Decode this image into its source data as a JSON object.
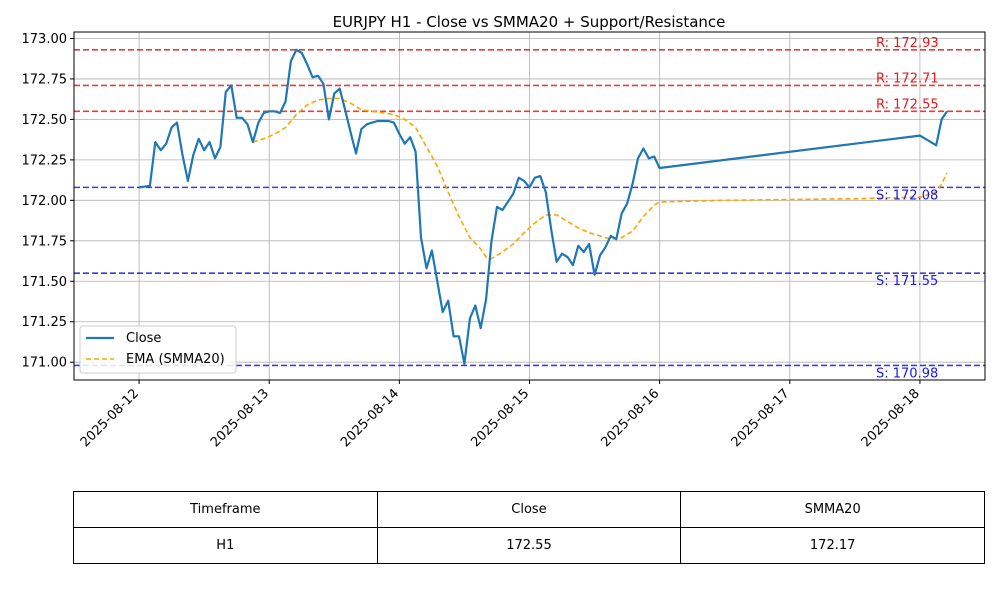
{
  "chart_data": {
    "type": "line",
    "title": "EURJPY H1 - Close vs SMMA20 + Support/Resistance",
    "xlabel": "",
    "ylabel": "",
    "xlim": [
      "2025-08-11T12:00",
      "2025-08-18T12:00"
    ],
    "ylim": [
      170.89,
      173.04
    ],
    "x_ticks": [
      "2025-08-12",
      "2025-08-13",
      "2025-08-14",
      "2025-08-15",
      "2025-08-16",
      "2025-08-17",
      "2025-08-18"
    ],
    "y_ticks": [
      "171.00",
      "171.25",
      "171.50",
      "171.75",
      "172.00",
      "172.25",
      "172.50",
      "172.75",
      "173.00"
    ],
    "grid": true,
    "legend_position": "lower-left",
    "series": [
      {
        "name": "Close",
        "color": "#1f77b4",
        "style": "solid",
        "points": [
          [
            "2025-08-12T00:00",
            172.08
          ],
          [
            "2025-08-12T02:00",
            172.09
          ],
          [
            "2025-08-12T03:00",
            172.36
          ],
          [
            "2025-08-12T04:00",
            172.31
          ],
          [
            "2025-08-12T05:00",
            172.35
          ],
          [
            "2025-08-12T06:00",
            172.45
          ],
          [
            "2025-08-12T07:00",
            172.48
          ],
          [
            "2025-08-12T08:00",
            172.28
          ],
          [
            "2025-08-12T09:00",
            172.12
          ],
          [
            "2025-08-12T10:00",
            172.28
          ],
          [
            "2025-08-12T11:00",
            172.38
          ],
          [
            "2025-08-12T12:00",
            172.31
          ],
          [
            "2025-08-12T13:00",
            172.36
          ],
          [
            "2025-08-12T14:00",
            172.26
          ],
          [
            "2025-08-12T15:00",
            172.33
          ],
          [
            "2025-08-12T16:00",
            172.67
          ],
          [
            "2025-08-12T17:00",
            172.71
          ],
          [
            "2025-08-12T18:00",
            172.51
          ],
          [
            "2025-08-12T19:00",
            172.51
          ],
          [
            "2025-08-12T20:00",
            172.47
          ],
          [
            "2025-08-12T21:00",
            172.36
          ],
          [
            "2025-08-12T22:00",
            172.48
          ],
          [
            "2025-08-12T23:00",
            172.54
          ],
          [
            "2025-08-13T00:00",
            172.55
          ],
          [
            "2025-08-13T01:00",
            172.55
          ],
          [
            "2025-08-13T02:00",
            172.54
          ],
          [
            "2025-08-13T03:00",
            172.61
          ],
          [
            "2025-08-13T04:00",
            172.86
          ],
          [
            "2025-08-13T05:00",
            172.93
          ],
          [
            "2025-08-13T06:00",
            172.91
          ],
          [
            "2025-08-13T07:00",
            172.84
          ],
          [
            "2025-08-13T08:00",
            172.76
          ],
          [
            "2025-08-13T09:00",
            172.77
          ],
          [
            "2025-08-13T10:00",
            172.72
          ],
          [
            "2025-08-13T11:00",
            172.5
          ],
          [
            "2025-08-13T12:00",
            172.66
          ],
          [
            "2025-08-13T13:00",
            172.69
          ],
          [
            "2025-08-13T14:00",
            172.56
          ],
          [
            "2025-08-13T15:00",
            172.42
          ],
          [
            "2025-08-13T16:00",
            172.29
          ],
          [
            "2025-08-13T17:00",
            172.44
          ],
          [
            "2025-08-13T18:00",
            172.47
          ],
          [
            "2025-08-13T19:00",
            172.48
          ],
          [
            "2025-08-13T20:00",
            172.49
          ],
          [
            "2025-08-13T21:00",
            172.49
          ],
          [
            "2025-08-13T22:00",
            172.49
          ],
          [
            "2025-08-13T23:00",
            172.48
          ],
          [
            "2025-08-14T00:00",
            172.41
          ],
          [
            "2025-08-14T01:00",
            172.35
          ],
          [
            "2025-08-14T02:00",
            172.39
          ],
          [
            "2025-08-14T03:00",
            172.3
          ],
          [
            "2025-08-14T04:00",
            171.77
          ],
          [
            "2025-08-14T05:00",
            171.58
          ],
          [
            "2025-08-14T06:00",
            171.69
          ],
          [
            "2025-08-14T07:00",
            171.5
          ],
          [
            "2025-08-14T08:00",
            171.31
          ],
          [
            "2025-08-14T09:00",
            171.38
          ],
          [
            "2025-08-14T10:00",
            171.16
          ],
          [
            "2025-08-14T11:00",
            171.16
          ],
          [
            "2025-08-14T12:00",
            170.99
          ],
          [
            "2025-08-14T13:00",
            171.27
          ],
          [
            "2025-08-14T14:00",
            171.35
          ],
          [
            "2025-08-14T15:00",
            171.21
          ],
          [
            "2025-08-14T16:00",
            171.39
          ],
          [
            "2025-08-14T17:00",
            171.75
          ],
          [
            "2025-08-14T18:00",
            171.96
          ],
          [
            "2025-08-14T19:00",
            171.94
          ],
          [
            "2025-08-14T20:00",
            171.99
          ],
          [
            "2025-08-14T21:00",
            172.04
          ],
          [
            "2025-08-14T22:00",
            172.14
          ],
          [
            "2025-08-14T23:00",
            172.12
          ],
          [
            "2025-08-15T00:00",
            172.08
          ],
          [
            "2025-08-15T01:00",
            172.14
          ],
          [
            "2025-08-15T02:00",
            172.15
          ],
          [
            "2025-08-15T03:00",
            172.05
          ],
          [
            "2025-08-15T04:00",
            171.82
          ],
          [
            "2025-08-15T05:00",
            171.62
          ],
          [
            "2025-08-15T06:00",
            171.67
          ],
          [
            "2025-08-15T07:00",
            171.65
          ],
          [
            "2025-08-15T08:00",
            171.6
          ],
          [
            "2025-08-15T09:00",
            171.72
          ],
          [
            "2025-08-15T10:00",
            171.68
          ],
          [
            "2025-08-15T11:00",
            171.73
          ],
          [
            "2025-08-15T12:00",
            171.54
          ],
          [
            "2025-08-15T13:00",
            171.66
          ],
          [
            "2025-08-15T14:00",
            171.71
          ],
          [
            "2025-08-15T15:00",
            171.78
          ],
          [
            "2025-08-15T16:00",
            171.76
          ],
          [
            "2025-08-15T17:00",
            171.92
          ],
          [
            "2025-08-15T18:00",
            171.98
          ],
          [
            "2025-08-15T19:00",
            172.1
          ],
          [
            "2025-08-15T20:00",
            172.26
          ],
          [
            "2025-08-15T21:00",
            172.32
          ],
          [
            "2025-08-15T22:00",
            172.26
          ],
          [
            "2025-08-15T23:00",
            172.27
          ],
          [
            "2025-08-16T00:00",
            172.2
          ],
          [
            "2025-08-18T00:00",
            172.4
          ],
          [
            "2025-08-18T03:00",
            172.34
          ],
          [
            "2025-08-18T04:00",
            172.5
          ],
          [
            "2025-08-18T05:00",
            172.55
          ]
        ]
      },
      {
        "name": "EMA (SMMA20)",
        "color": "#ffa500",
        "style": "dashed",
        "points": [
          [
            "2025-08-12T21:00",
            172.36
          ],
          [
            "2025-08-12T23:00",
            172.38
          ],
          [
            "2025-08-13T01:00",
            172.41
          ],
          [
            "2025-08-13T03:00",
            172.45
          ],
          [
            "2025-08-13T05:00",
            172.53
          ],
          [
            "2025-08-13T07:00",
            172.59
          ],
          [
            "2025-08-13T09:00",
            172.62
          ],
          [
            "2025-08-13T11:00",
            172.63
          ],
          [
            "2025-08-13T13:00",
            172.63
          ],
          [
            "2025-08-13T15:00",
            172.6
          ],
          [
            "2025-08-13T17:00",
            172.56
          ],
          [
            "2025-08-13T19:00",
            172.55
          ],
          [
            "2025-08-13T21:00",
            172.54
          ],
          [
            "2025-08-13T23:00",
            172.53
          ],
          [
            "2025-08-14T01:00",
            172.5
          ],
          [
            "2025-08-14T03:00",
            172.45
          ],
          [
            "2025-08-14T05:00",
            172.33
          ],
          [
            "2025-08-14T07:00",
            172.21
          ],
          [
            "2025-08-14T09:00",
            172.05
          ],
          [
            "2025-08-14T11:00",
            171.9
          ],
          [
            "2025-08-14T13:00",
            171.77
          ],
          [
            "2025-08-14T15:00",
            171.7
          ],
          [
            "2025-08-14T16:00",
            171.65
          ],
          [
            "2025-08-14T17:00",
            171.64
          ],
          [
            "2025-08-14T19:00",
            171.68
          ],
          [
            "2025-08-14T21:00",
            171.73
          ],
          [
            "2025-08-14T23:00",
            171.8
          ],
          [
            "2025-08-15T01:00",
            171.86
          ],
          [
            "2025-08-15T03:00",
            171.91
          ],
          [
            "2025-08-15T05:00",
            171.91
          ],
          [
            "2025-08-15T07:00",
            171.87
          ],
          [
            "2025-08-15T09:00",
            171.83
          ],
          [
            "2025-08-15T11:00",
            171.8
          ],
          [
            "2025-08-15T13:00",
            171.78
          ],
          [
            "2025-08-15T15:00",
            171.76
          ],
          [
            "2025-08-15T17:00",
            171.77
          ],
          [
            "2025-08-15T19:00",
            171.81
          ],
          [
            "2025-08-15T21:00",
            171.9
          ],
          [
            "2025-08-15T23:00",
            171.97
          ],
          [
            "2025-08-16T00:00",
            171.99
          ],
          [
            "2025-08-16T12:00",
            172.0
          ],
          [
            "2025-08-17T12:00",
            172.01
          ],
          [
            "2025-08-18T00:00",
            172.02
          ],
          [
            "2025-08-18T03:00",
            172.05
          ],
          [
            "2025-08-18T04:00",
            172.1
          ],
          [
            "2025-08-18T05:00",
            172.17
          ]
        ]
      }
    ],
    "hlines": [
      {
        "kind": "resistance",
        "value": 172.93,
        "label": "R: 172.93",
        "color": "#e41a1c"
      },
      {
        "kind": "resistance",
        "value": 172.71,
        "label": "R: 172.71",
        "color": "#e41a1c"
      },
      {
        "kind": "resistance",
        "value": 172.55,
        "label": "R: 172.55",
        "color": "#e41a1c"
      },
      {
        "kind": "support",
        "value": 172.08,
        "label": "S: 172.08",
        "color": "#1a1ae4"
      },
      {
        "kind": "support",
        "value": 171.55,
        "label": "S: 171.55",
        "color": "#1a1ae4"
      },
      {
        "kind": "support",
        "value": 170.98,
        "label": "S: 170.98",
        "color": "#1a1ae4"
      }
    ]
  },
  "table": {
    "headers": [
      "Timeframe",
      "Close",
      "SMMA20"
    ],
    "rows": [
      [
        "H1",
        "172.55",
        "172.17"
      ]
    ]
  }
}
